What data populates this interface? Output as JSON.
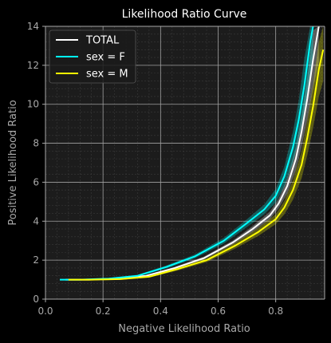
{
  "chart_data": {
    "type": "line",
    "title": "Likelihood Ratio Curve",
    "xlabel": "Negative Likelihood Ratio",
    "ylabel": "Positive Likelihood Ratio",
    "xlim": [
      0.0,
      0.97
    ],
    "ylim": [
      0,
      14
    ],
    "xticks": [
      0.0,
      0.2,
      0.4,
      0.6,
      0.8
    ],
    "xtick_labels": [
      "0.0",
      "0.2",
      "0.4",
      "0.6",
      "0.8"
    ],
    "yticks": [
      0,
      2,
      4,
      6,
      8,
      10,
      12,
      14
    ],
    "ytick_labels": [
      "0",
      "2",
      "4",
      "6",
      "8",
      "10",
      "12",
      "14"
    ],
    "grid": true,
    "minor_grid": true,
    "legend_position": "top-left",
    "series": [
      {
        "name": "TOTAL",
        "color": "#ffffff",
        "x": [
          0.07,
          0.15,
          0.25,
          0.35,
          0.45,
          0.55,
          0.65,
          0.72,
          0.78,
          0.81,
          0.84,
          0.87,
          0.89,
          0.91,
          0.93,
          0.95
        ],
        "y": [
          1.0,
          1.0,
          1.05,
          1.2,
          1.6,
          2.1,
          2.9,
          3.6,
          4.3,
          4.9,
          5.8,
          7.2,
          8.6,
          10.3,
          12.3,
          14.0
        ],
        "band_lower": [
          0.98,
          0.98,
          1.02,
          1.16,
          1.54,
          2.03,
          2.8,
          3.45,
          4.1,
          4.65,
          5.4,
          6.6,
          7.8,
          9.2,
          10.8,
          12.2
        ],
        "band_upper": [
          1.02,
          1.02,
          1.08,
          1.24,
          1.66,
          2.18,
          3.0,
          3.75,
          4.5,
          5.15,
          6.2,
          7.8,
          9.4,
          11.4,
          13.8,
          14.0
        ]
      },
      {
        "name": "sex = F",
        "color": "#00ffff",
        "x": [
          0.05,
          0.12,
          0.22,
          0.32,
          0.42,
          0.52,
          0.62,
          0.7,
          0.76,
          0.8,
          0.83,
          0.86,
          0.88,
          0.9,
          0.92,
          0.93
        ],
        "y": [
          1.0,
          1.0,
          1.05,
          1.2,
          1.65,
          2.2,
          3.0,
          3.9,
          4.6,
          5.3,
          6.3,
          7.8,
          9.2,
          11.0,
          13.2,
          14.0
        ],
        "band_lower": [
          0.97,
          0.97,
          1.01,
          1.15,
          1.57,
          2.1,
          2.85,
          3.7,
          4.35,
          4.95,
          5.8,
          7.0,
          8.2,
          9.6,
          11.3,
          12.2
        ],
        "band_upper": [
          1.03,
          1.03,
          1.09,
          1.25,
          1.73,
          2.3,
          3.15,
          4.1,
          4.85,
          5.65,
          6.8,
          8.6,
          10.2,
          12.4,
          14.0,
          14.0
        ]
      },
      {
        "name": "sex = M",
        "color": "#ffff00",
        "x": [
          0.08,
          0.16,
          0.26,
          0.36,
          0.46,
          0.56,
          0.66,
          0.74,
          0.8,
          0.83,
          0.86,
          0.89,
          0.91,
          0.93,
          0.95,
          0.965
        ],
        "y": [
          1.0,
          1.0,
          1.03,
          1.15,
          1.55,
          2.0,
          2.75,
          3.45,
          4.1,
          4.7,
          5.6,
          6.9,
          8.3,
          9.9,
          11.8,
          12.8
        ],
        "band_lower": [
          0.97,
          0.97,
          0.99,
          1.1,
          1.47,
          1.9,
          2.6,
          3.25,
          3.85,
          4.35,
          5.1,
          6.2,
          7.4,
          8.8,
          10.4,
          11.2
        ],
        "band_upper": [
          1.03,
          1.03,
          1.07,
          1.2,
          1.63,
          2.1,
          2.9,
          3.65,
          4.35,
          5.05,
          6.1,
          7.6,
          9.2,
          11.0,
          13.2,
          14.0
        ]
      }
    ]
  }
}
